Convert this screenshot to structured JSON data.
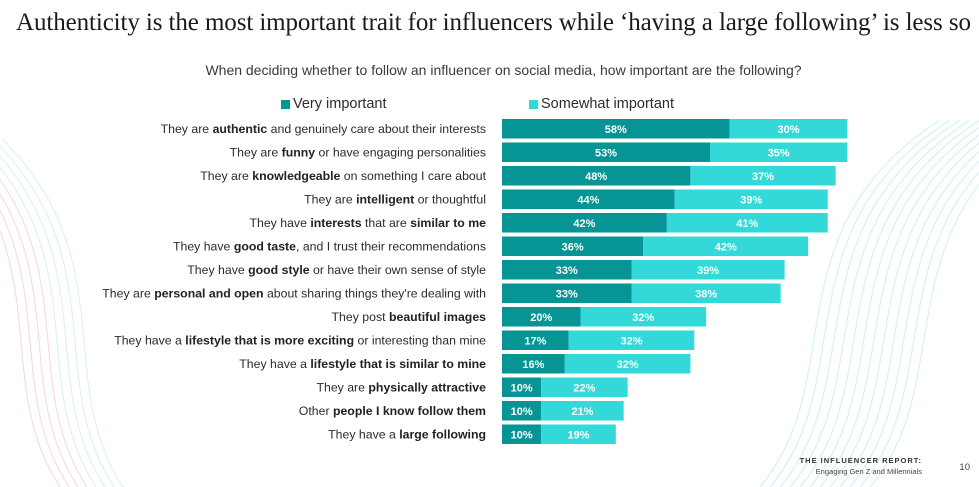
{
  "title": "Authenticity is the most important trait for influencers while ‘having a large following’ is less so",
  "footer": {
    "report_title": "THE INFLUENCER REPORT:",
    "report_subtitle": "Engaging Gen Z and Millennials",
    "page_number": "10"
  },
  "colors": {
    "very_important": "#069494",
    "somewhat_important": "#33d9d9",
    "label_bold": "#222222"
  },
  "chart_data": {
    "type": "bar",
    "orientation": "horizontal",
    "stacked": true,
    "title": "When deciding whether to follow an influencer on social media, how important are the following?",
    "legend_position": "top",
    "grid": false,
    "xlim": [
      0,
      100
    ],
    "categories": [
      "They are authentic and genuinely care about their interests",
      "They are funny or have engaging personalities",
      "They are knowledgeable on something I care about",
      "They are intelligent or thoughtful",
      "They have interests that are similar to me",
      "They have good taste, and I trust their recommendations",
      "They have good style or have their own sense of style",
      "They are personal and open about sharing things they're dealing with",
      "They post beautiful images",
      "They have a lifestyle that is more exciting or interesting than mine",
      "They have a lifestyle that is similar to mine",
      "They are physically attractive",
      "Other people I know follow them",
      "They have a large following"
    ],
    "category_label_parts": [
      [
        [
          "They are ",
          false
        ],
        [
          "authentic",
          true
        ],
        [
          " and genuinely care about their interests",
          false
        ]
      ],
      [
        [
          "They are ",
          false
        ],
        [
          "funny",
          true
        ],
        [
          " or have engaging personalities",
          false
        ]
      ],
      [
        [
          "They are ",
          false
        ],
        [
          "knowledgeable",
          true
        ],
        [
          " on something I care about",
          false
        ]
      ],
      [
        [
          "They are ",
          false
        ],
        [
          "intelligent",
          true
        ],
        [
          " or thoughtful",
          false
        ]
      ],
      [
        [
          "They have ",
          false
        ],
        [
          "interests",
          true
        ],
        [
          " that are ",
          false
        ],
        [
          "similar to me",
          true
        ]
      ],
      [
        [
          "They have ",
          false
        ],
        [
          "good taste",
          true
        ],
        [
          ", and I trust their recommendations",
          false
        ]
      ],
      [
        [
          "They have ",
          false
        ],
        [
          "good style",
          true
        ],
        [
          " or have their own sense of style",
          false
        ]
      ],
      [
        [
          "They are ",
          false
        ],
        [
          "personal and open",
          true
        ],
        [
          " about sharing things they're dealing with",
          false
        ]
      ],
      [
        [
          "They post ",
          false
        ],
        [
          "beautiful images",
          true
        ]
      ],
      [
        [
          "They have a ",
          false
        ],
        [
          "lifestyle that is more exciting",
          true
        ],
        [
          " or interesting than mine",
          false
        ]
      ],
      [
        [
          "They have a ",
          false
        ],
        [
          "lifestyle that is similar to mine",
          true
        ]
      ],
      [
        [
          "They are ",
          false
        ],
        [
          "physically attractive",
          true
        ]
      ],
      [
        [
          "Other ",
          false
        ],
        [
          "people I know follow them",
          true
        ]
      ],
      [
        [
          "They have a ",
          false
        ],
        [
          "large following",
          true
        ]
      ]
    ],
    "series": [
      {
        "name": "Very important",
        "values": [
          58,
          53,
          48,
          44,
          42,
          36,
          33,
          33,
          20,
          17,
          16,
          10,
          10,
          10
        ]
      },
      {
        "name": "Somewhat important",
        "values": [
          30,
          35,
          37,
          39,
          41,
          42,
          39,
          38,
          32,
          32,
          32,
          22,
          21,
          19
        ]
      }
    ],
    "value_suffix": "%"
  }
}
